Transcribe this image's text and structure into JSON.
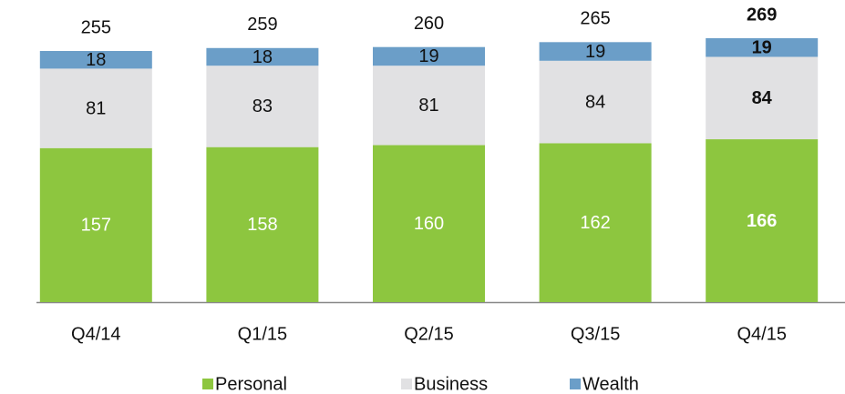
{
  "chart_data": {
    "type": "stacked_bar",
    "categories": [
      "Q4/14",
      "Q1/15",
      "Q2/15",
      "Q3/15",
      "Q4/15"
    ],
    "series": [
      {
        "name": "Personal",
        "color": "#8dc63f",
        "values": [
          157,
          158,
          160,
          162,
          166
        ]
      },
      {
        "name": "Business",
        "color": "#e1e1e3",
        "values": [
          81,
          83,
          81,
          84,
          84
        ]
      },
      {
        "name": "Wealth",
        "color": "#6b9ec8",
        "values": [
          18,
          18,
          19,
          19,
          19
        ]
      }
    ],
    "totals": [
      255,
      259,
      260,
      265,
      269
    ]
  }
}
